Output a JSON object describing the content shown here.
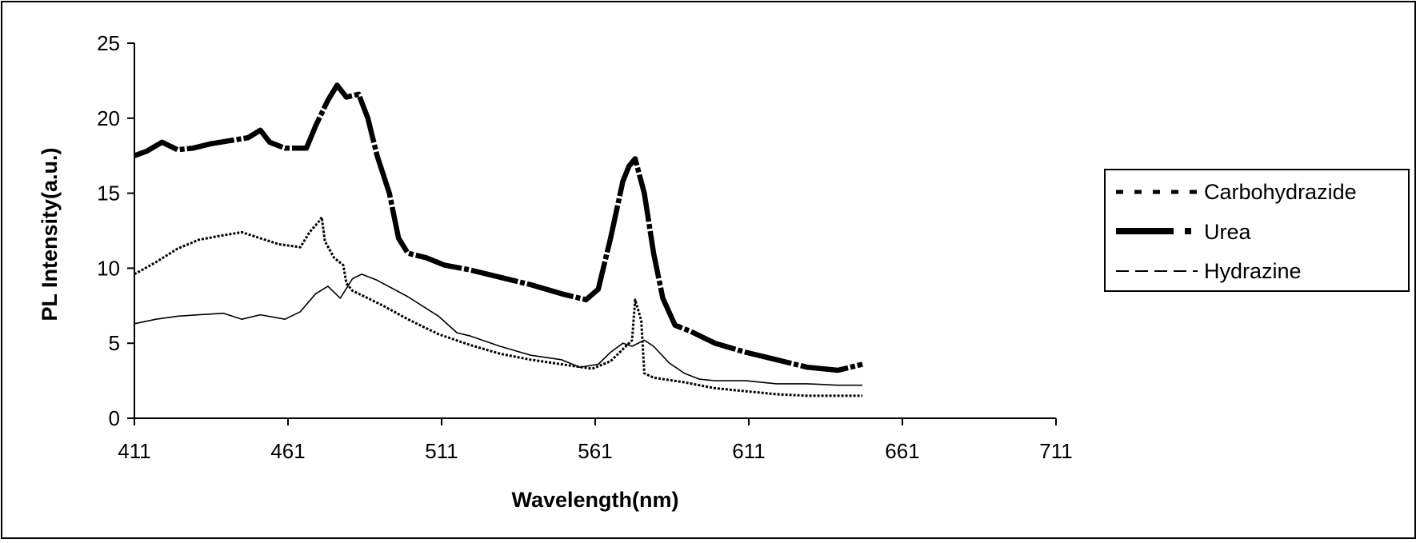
{
  "chart_data": {
    "type": "line",
    "title": "",
    "xlabel": "Wavelength(nm)",
    "ylabel": "PL Intensity(a.u.)",
    "xlim": [
      411,
      711
    ],
    "ylim": [
      0,
      25
    ],
    "x_ticks": [
      "411",
      "461",
      "511",
      "561",
      "611",
      "661",
      "711"
    ],
    "y_ticks": [
      "0",
      "5",
      "10",
      "15",
      "20",
      "25"
    ],
    "grid": false,
    "legend_position": "right",
    "series": [
      {
        "name": "Carbohydrazide",
        "line_style": "dotted",
        "color": "#000000",
        "points": [
          [
            411,
            9.6
          ],
          [
            418,
            10.4
          ],
          [
            425,
            11.3
          ],
          [
            432,
            11.9
          ],
          [
            440,
            12.2
          ],
          [
            446,
            12.4
          ],
          [
            452,
            12.0
          ],
          [
            458,
            11.6
          ],
          [
            465,
            11.4
          ],
          [
            468,
            12.4
          ],
          [
            471,
            13.1
          ],
          [
            472,
            13.4
          ],
          [
            473,
            11.8
          ],
          [
            476,
            10.7
          ],
          [
            479,
            10.2
          ],
          [
            480,
            9.0
          ],
          [
            482,
            8.5
          ],
          [
            486,
            8.1
          ],
          [
            492,
            7.5
          ],
          [
            500,
            6.6
          ],
          [
            510,
            5.6
          ],
          [
            520,
            4.9
          ],
          [
            530,
            4.3
          ],
          [
            540,
            3.9
          ],
          [
            550,
            3.6
          ],
          [
            560,
            3.3
          ],
          [
            566,
            3.8
          ],
          [
            570,
            4.6
          ],
          [
            573,
            5.2
          ],
          [
            574,
            7.9
          ],
          [
            575,
            7.2
          ],
          [
            576,
            6.5
          ],
          [
            577,
            3.0
          ],
          [
            580,
            2.7
          ],
          [
            590,
            2.4
          ],
          [
            600,
            2.0
          ],
          [
            610,
            1.8
          ],
          [
            620,
            1.6
          ],
          [
            630,
            1.5
          ],
          [
            648,
            1.5
          ]
        ]
      },
      {
        "name": "Urea",
        "line_style": "solid-thick",
        "color": "#000000",
        "points": [
          [
            411,
            17.5
          ],
          [
            415,
            17.8
          ],
          [
            420,
            18.4
          ],
          [
            425,
            17.9
          ],
          [
            430,
            18.0
          ],
          [
            436,
            18.3
          ],
          [
            442,
            18.5
          ],
          [
            448,
            18.7
          ],
          [
            452,
            19.2
          ],
          [
            455,
            18.4
          ],
          [
            460,
            18.0
          ],
          [
            467,
            18.0
          ],
          [
            470,
            19.5
          ],
          [
            474,
            21.2
          ],
          [
            477,
            22.2
          ],
          [
            480,
            21.4
          ],
          [
            484,
            21.6
          ],
          [
            487,
            20.0
          ],
          [
            490,
            17.5
          ],
          [
            494,
            15.0
          ],
          [
            497,
            12.0
          ],
          [
            500,
            11.0
          ],
          [
            506,
            10.7
          ],
          [
            512,
            10.2
          ],
          [
            520,
            9.9
          ],
          [
            530,
            9.4
          ],
          [
            540,
            8.9
          ],
          [
            550,
            8.3
          ],
          [
            558,
            7.9
          ],
          [
            562,
            8.6
          ],
          [
            566,
            12.0
          ],
          [
            570,
            15.8
          ],
          [
            572,
            16.8
          ],
          [
            574,
            17.3
          ],
          [
            577,
            15.0
          ],
          [
            580,
            11.0
          ],
          [
            583,
            8.0
          ],
          [
            587,
            6.2
          ],
          [
            592,
            5.8
          ],
          [
            600,
            5.0
          ],
          [
            610,
            4.4
          ],
          [
            620,
            3.9
          ],
          [
            630,
            3.4
          ],
          [
            640,
            3.2
          ],
          [
            648,
            3.6
          ]
        ]
      },
      {
        "name": "Hydrazine",
        "line_style": "dashed-thin",
        "color": "#000000",
        "points": [
          [
            411,
            6.3
          ],
          [
            418,
            6.6
          ],
          [
            425,
            6.8
          ],
          [
            432,
            6.9
          ],
          [
            440,
            7.0
          ],
          [
            446,
            6.6
          ],
          [
            452,
            6.9
          ],
          [
            460,
            6.6
          ],
          [
            465,
            7.1
          ],
          [
            470,
            8.3
          ],
          [
            474,
            8.8
          ],
          [
            478,
            8.0
          ],
          [
            482,
            9.3
          ],
          [
            485,
            9.6
          ],
          [
            490,
            9.2
          ],
          [
            500,
            8.1
          ],
          [
            510,
            6.8
          ],
          [
            516,
            5.7
          ],
          [
            520,
            5.5
          ],
          [
            530,
            4.8
          ],
          [
            540,
            4.2
          ],
          [
            550,
            3.9
          ],
          [
            556,
            3.4
          ],
          [
            562,
            3.6
          ],
          [
            566,
            4.4
          ],
          [
            570,
            5.0
          ],
          [
            573,
            4.8
          ],
          [
            577,
            5.2
          ],
          [
            580,
            4.8
          ],
          [
            585,
            3.7
          ],
          [
            590,
            3.0
          ],
          [
            595,
            2.6
          ],
          [
            600,
            2.5
          ],
          [
            610,
            2.5
          ],
          [
            620,
            2.3
          ],
          [
            630,
            2.3
          ],
          [
            640,
            2.2
          ],
          [
            648,
            2.2
          ]
        ]
      }
    ]
  }
}
